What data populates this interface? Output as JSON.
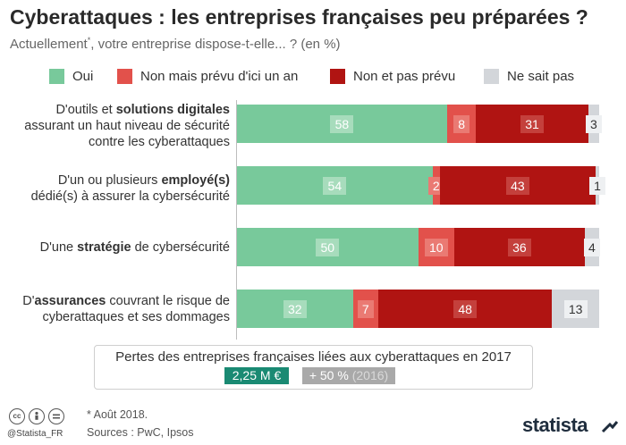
{
  "title": "Cyberattaques : les entreprises françaises peu préparées ?",
  "subtitle_main": "Actuellement",
  "subtitle_sup": "*",
  "subtitle_rest": ", votre entreprise dispose-t-elle... ? (en %)",
  "legend": [
    {
      "label": "Oui",
      "color": "#78c99b"
    },
    {
      "label": "Non mais prévu d'ici un an",
      "color": "#e2514b"
    },
    {
      "label": "Non et pas prévu",
      "color": "#b01412"
    },
    {
      "label": "Ne sait pas",
      "color": "#d3d6da"
    }
  ],
  "chart_data": {
    "type": "bar",
    "orientation": "horizontal",
    "stacked": true,
    "categories": [
      "D'outils et solutions digitales assurant un haut niveau de sécurité contre les cyberattaques",
      "D'un ou plusieurs employé(s) dédié(s) à assurer la cybersécurité",
      "D'une stratégie de cybersécurité",
      "D'assurances couvrant le risque de cyberattaques et ses dommages"
    ],
    "series": [
      {
        "name": "Oui",
        "color": "#78c99b",
        "values": [
          58,
          54,
          50,
          32
        ]
      },
      {
        "name": "Non mais prévu d'ici un an",
        "color": "#e2514b",
        "values": [
          8,
          2,
          10,
          7
        ]
      },
      {
        "name": "Non et pas prévu",
        "color": "#b01412",
        "values": [
          31,
          43,
          36,
          48
        ]
      },
      {
        "name": "Ne sait pas",
        "color": "#d3d6da",
        "values": [
          3,
          1,
          4,
          13
        ]
      }
    ],
    "unit": "%",
    "xlim": [
      0,
      100
    ]
  },
  "category_labels": [
    {
      "pre": "D'outils et ",
      "bold": "solutions digitales",
      "post": "",
      "line2": "assurant un haut niveau de sécurité",
      "line3": "contre les cyberattaques"
    },
    {
      "pre": "D'un ou plusieurs ",
      "bold": "employé(s)",
      "post": "",
      "line2": "dédié(s) à assurer la cybersécurité",
      "line3": ""
    },
    {
      "pre": "D'une ",
      "bold": "stratégie",
      "post": " de cybersécurité",
      "line2": "",
      "line3": ""
    },
    {
      "pre": "D'",
      "bold": "assurances",
      "post": " couvrant le risque de",
      "line2": "cyberattaques et ses dommages",
      "line3": ""
    }
  ],
  "info": {
    "title": "Pertes des entreprises françaises liées aux cyberattaques en 2017",
    "amount": "2,25 M €",
    "change": "+ 50 %",
    "change_ref": "(2016)"
  },
  "footer": {
    "handle": "@Statista_FR",
    "note": "* Août 2018.",
    "sources": "Sources : PwC, Ipsos",
    "brand": "statista"
  }
}
